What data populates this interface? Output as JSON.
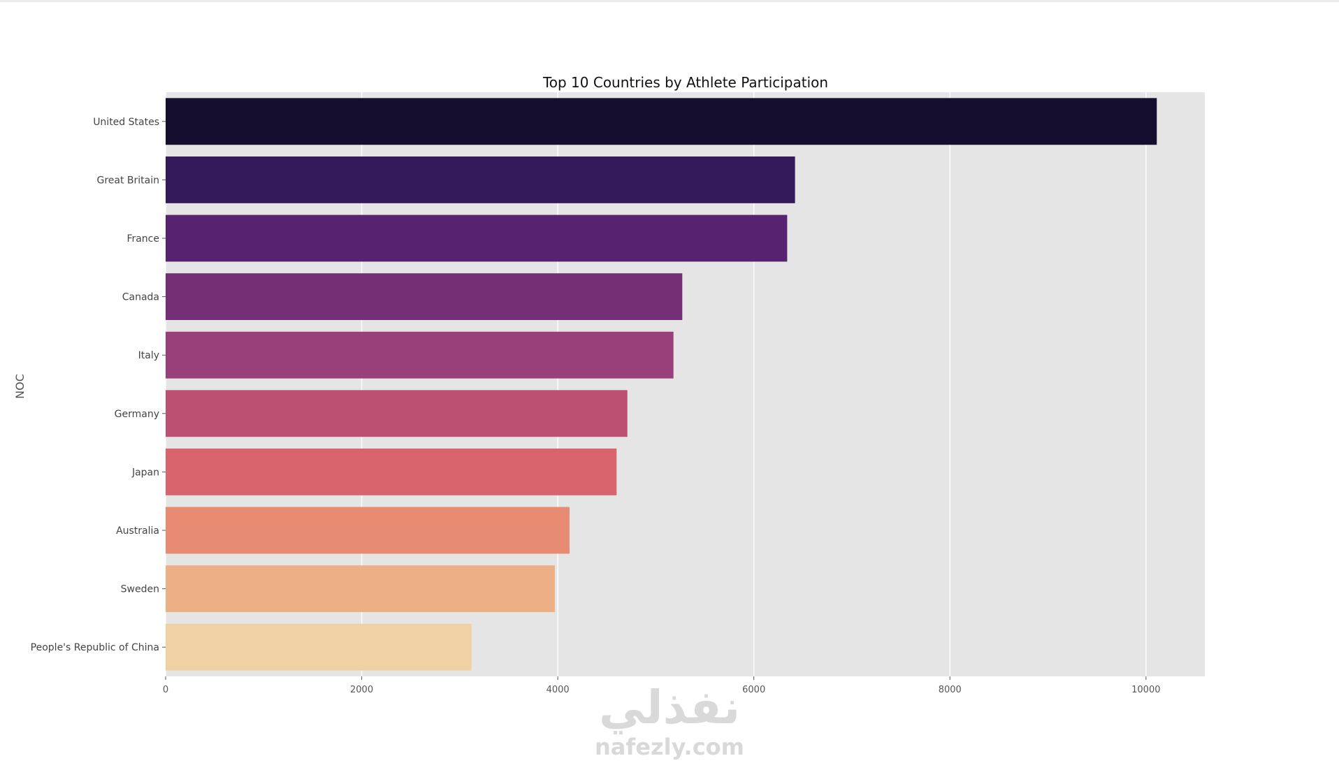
{
  "chart_data": {
    "type": "bar",
    "orientation": "horizontal",
    "title": "Top 10 Countries by Athlete Participation",
    "xlabel": "",
    "ylabel": "NOC",
    "categories": [
      "United States",
      "Great Britain",
      "France",
      "Canada",
      "Italy",
      "Germany",
      "Japan",
      "Australia",
      "Sweden",
      "People's Republic of China"
    ],
    "values": [
      10110,
      6420,
      6340,
      5270,
      5180,
      4710,
      4600,
      4120,
      3970,
      3120
    ],
    "xlim": [
      0,
      10600
    ],
    "xticks": [
      0,
      2000,
      4000,
      6000,
      8000,
      10000
    ],
    "grid": true,
    "colors": [
      "#150e2f",
      "#341a5b",
      "#572371",
      "#752f75",
      "#993f7a",
      "#bc5072",
      "#d8656e",
      "#e78b72",
      "#edaf86",
      "#f0d1a4"
    ],
    "background": "#e5e5e5"
  },
  "watermark": {
    "arabic": "نفذلي",
    "latin": "nafezly.com"
  }
}
